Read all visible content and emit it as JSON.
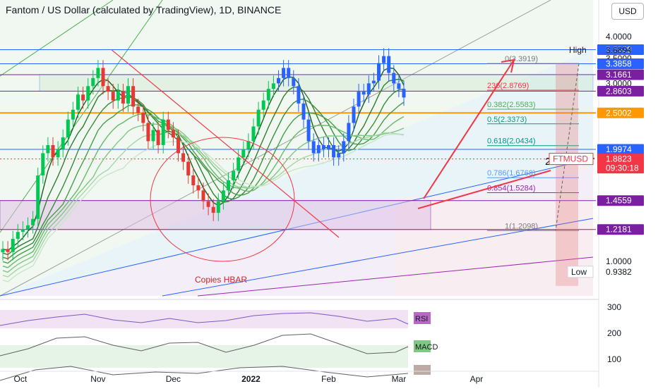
{
  "header": {
    "title": "Fantom / US Dollar (calculated by TradingView), 1D, BINANCE",
    "currency_button": "USD"
  },
  "colors": {
    "candle_up": "#2962ff",
    "candle_down": "#e53935",
    "level_blue": "#2962ff",
    "level_orange": "#ff9800",
    "tag_purple": "#7b1fa2",
    "tag_red": "#f23645",
    "trend_red": "#f23645"
  },
  "chart_data": {
    "type": "line",
    "symbol": "FTMUSD",
    "interval": "1D",
    "exchange": "BINANCE",
    "y_scale": "log",
    "ylim": [
      0.83,
      4.6
    ],
    "x_ticks": [
      "Oct",
      "Nov",
      "Dec",
      "2022",
      "Feb",
      "Mar",
      "Apr"
    ],
    "y_ticks": [
      "4.0000",
      "3.5000",
      "3.0000",
      "1.0000"
    ],
    "price_tags": [
      {
        "label": "3.6928",
        "value": 3.6928,
        "style": "blue"
      },
      {
        "label": "3.3858",
        "value": 3.3858,
        "style": "blue"
      },
      {
        "label": "3.1661",
        "value": 3.1661,
        "style": "purple"
      },
      {
        "label": "2.8603",
        "value": 2.8603,
        "style": "purple"
      },
      {
        "label": "2.5002",
        "value": 2.5002,
        "style": "orange"
      },
      {
        "label": "1.9974",
        "value": 1.9974,
        "style": "blue"
      },
      {
        "label": "1.8823",
        "value": 1.8823,
        "style": "red",
        "sub": "09:30:18"
      },
      {
        "label": "1.4559",
        "value": 1.4559,
        "style": "purple"
      },
      {
        "label": "1.2181",
        "value": 1.2181,
        "style": "purple"
      },
      {
        "label": "0.9382",
        "value": 0.9382,
        "style": "plain"
      }
    ],
    "high_label": "High",
    "high_value": "3.6894",
    "low_label": "Low",
    "symbol_tag": "FTMUSD",
    "fib_levels": [
      {
        "label": "0(3.3919)",
        "value": 3.3919,
        "color": "#787b86"
      },
      {
        "label": "236(2.8769)",
        "value": 2.8769,
        "color": "#f23645"
      },
      {
        "label": "0.382(2.5583)",
        "value": 2.5583,
        "color": "#4caf50"
      },
      {
        "label": "0.5(2.3373)",
        "value": 2.3373,
        "color": "#089981"
      },
      {
        "label": "0.618(2.0434)",
        "value": 2.0434,
        "color": "#009688"
      },
      {
        "label": "0.786(1.6768)",
        "value": 1.6768,
        "color": "#5b9cf6"
      },
      {
        "label": "0.854(1.5284)",
        "value": 1.5284,
        "color": "#9c27b0"
      },
      {
        "label": "1(1.2098)",
        "value": 1.2098,
        "color": "#787b86"
      }
    ],
    "annotations": {
      "pivot": "2.5 PIVOT",
      "copies": "Copies HBAR"
    },
    "indicators": [
      {
        "name": "RSI",
        "ticks": [
          "300",
          "200",
          "100"
        ]
      },
      {
        "name": "MACD"
      }
    ],
    "series": [
      {
        "x": [
          "Sep 24",
          "Sep 26",
          "Sep 28",
          "Sep 30",
          "Oct 2",
          "Oct 4",
          "Oct 6",
          "Oct 8",
          "Oct 10",
          "Oct 12",
          "Oct 14",
          "Oct 16",
          "Oct 18",
          "Oct 20",
          "Oct 22",
          "Oct 24",
          "Oct 26",
          "Oct 28",
          "Oct 30",
          "Nov 1",
          "Nov 3",
          "Nov 5",
          "Nov 7",
          "Nov 9",
          "Nov 11",
          "Nov 13",
          "Nov 15",
          "Nov 17",
          "Nov 19",
          "Nov 21",
          "Nov 23",
          "Nov 25",
          "Nov 27",
          "Nov 29",
          "Dec 1",
          "Dec 3",
          "Dec 5",
          "Dec 7",
          "Dec 9",
          "Dec 11",
          "Dec 13",
          "Dec 15",
          "Dec 17",
          "Dec 19",
          "Dec 21",
          "Dec 23",
          "Dec 25",
          "Dec 27",
          "Dec 29",
          "Dec 31",
          "Jan 2",
          "Jan 4",
          "Jan 6",
          "Jan 8",
          "Jan 10",
          "Jan 12",
          "Jan 14",
          "Jan 16",
          "Jan 18",
          "Jan 20",
          "Jan 22",
          "Jan 24",
          "Jan 26",
          "Jan 28",
          "Jan 30",
          "Feb 1",
          "Feb 3",
          "Feb 5",
          "Feb 7",
          "Feb 9",
          "Feb 11",
          "Feb 13",
          "Feb 15",
          "Feb 17",
          "Feb 19",
          "Feb 21",
          "Feb 23",
          "Feb 25",
          "Feb 27",
          "Mar 1",
          "Mar 3"
        ],
        "close": [
          1.08,
          1.06,
          1.15,
          1.2,
          1.22,
          1.25,
          1.3,
          1.7,
          1.95,
          2.05,
          1.9,
          2.0,
          2.15,
          2.4,
          2.55,
          2.8,
          2.7,
          2.95,
          3.1,
          3.3,
          2.95,
          2.85,
          2.7,
          2.85,
          2.65,
          2.95,
          2.6,
          2.5,
          2.35,
          2.1,
          2.25,
          2.05,
          2.4,
          2.25,
          2.15,
          1.95,
          1.85,
          1.7,
          1.6,
          1.55,
          1.45,
          1.4,
          1.35,
          1.45,
          1.55,
          1.65,
          1.75,
          1.9,
          2.0,
          2.1,
          2.3,
          2.55,
          2.7,
          2.9,
          3.0,
          3.1,
          3.3,
          3.1,
          2.95,
          2.65,
          2.4,
          2.1,
          1.95,
          2.05,
          2.0,
          2.05,
          1.9,
          1.95,
          2.1,
          2.35,
          2.6,
          2.85,
          2.8,
          3.0,
          3.05,
          3.4,
          3.55,
          3.2,
          3.0,
          2.9,
          2.75
        ]
      }
    ]
  }
}
